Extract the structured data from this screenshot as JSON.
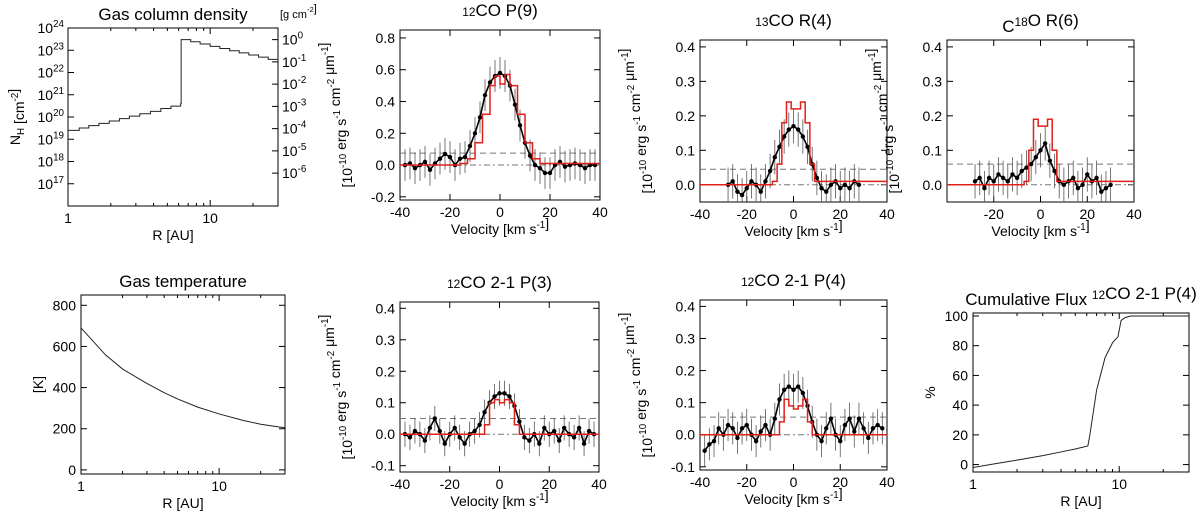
{
  "figure_description_texts": {},
  "colors": {
    "model": "#e0201b",
    "data": "#000000",
    "error": "#555555",
    "dashed": "#777777",
    "curve": "#222222"
  },
  "chart_data": [
    {
      "id": "nh",
      "type": "line",
      "title": "Gas column density",
      "xlabel": "R [AU]",
      "ylabel": "N_H [cm^-2]",
      "x_scale": "log",
      "xlim": [
        1,
        30
      ],
      "x_ticks": [
        1,
        10
      ],
      "y_scale": "log",
      "ylim": [
        1e+16,
        1e+24
      ],
      "y_ticks": [
        {
          "v": 1e+17,
          "t": "10^17"
        },
        {
          "v": 1e+18,
          "t": "10^18"
        },
        {
          "v": 1e+19,
          "t": "10^19"
        },
        {
          "v": 1e+20,
          "t": "10^20"
        },
        {
          "v": 1e+21,
          "t": "10^21"
        },
        {
          "v": 1e+22,
          "t": "10^22"
        },
        {
          "v": 1e+23,
          "t": "10^23"
        },
        {
          "v": 1e+24,
          "t": "10^24"
        }
      ],
      "y2_label": "[g cm^-2]",
      "y2_ticks": [
        {
          "v": 3e+17,
          "t": "10^-6"
        },
        {
          "v": 3e+18,
          "t": "10^-5"
        },
        {
          "v": 3e+19,
          "t": "10^-4"
        },
        {
          "v": 3e+20,
          "t": "10^-3"
        },
        {
          "v": 3e+21,
          "t": "10^-2"
        },
        {
          "v": 3e+22,
          "t": "10^-1"
        },
        {
          "v": 3e+23,
          "t": "10^0"
        }
      ],
      "series": [
        {
          "name": "N_H",
          "step": true,
          "x": [
            1,
            1.2,
            1.4,
            1.65,
            1.95,
            2.3,
            2.7,
            3.2,
            3.8,
            4.5,
            5.3,
            6.2,
            6.25,
            7.3,
            8.5,
            10,
            11.7,
            13.7,
            16,
            18.7,
            21.9,
            25.6,
            30
          ],
          "y": [
            2.5e+19,
            3.2e+19,
            4.1e+19,
            5.2e+19,
            6.6e+19,
            8.5e+19,
            1.1e+20,
            1.4e+20,
            1.8e+20,
            2.4e+20,
            3.1e+20,
            4e+20,
            3e+23,
            2.4e+23,
            1.9e+23,
            1.5e+23,
            1.2e+23,
            9.5e+22,
            7.6e+22,
            6.1e+22,
            4.9e+22,
            3.9e+22,
            3.1e+22
          ]
        }
      ]
    },
    {
      "id": "p9",
      "type": "line",
      "title": "12CO P(9)",
      "xlabel": "Velocity [km s-1]",
      "ylabel": "[10^-10 erg s^-1 cm^-2 μm^-1]",
      "xlim": [
        -40,
        40
      ],
      "x_ticks": [
        -40,
        -20,
        0,
        20,
        40
      ],
      "ylim": [
        -0.22,
        0.85
      ],
      "y_ticks": [
        -0.2,
        0.0,
        0.2,
        0.4,
        0.6,
        0.8
      ],
      "dashed_levels": [
        0.075,
        0.0
      ],
      "model": {
        "name": "model",
        "x": [
          -40,
          -22,
          -16,
          -13,
          -10,
          -7,
          -4,
          -2,
          0,
          2,
          4,
          7,
          10,
          13,
          16,
          40
        ],
        "y": [
          0,
          0,
          0.01,
          0.04,
          0.14,
          0.32,
          0.5,
          0.56,
          0.51,
          0.57,
          0.5,
          0.32,
          0.14,
          0.04,
          0.01,
          0
        ]
      },
      "data": {
        "name": "data",
        "err": 0.1,
        "x": [
          -38,
          -36,
          -34,
          -32,
          -30,
          -28,
          -26,
          -24,
          -22,
          -20,
          -18,
          -16,
          -14,
          -12,
          -10,
          -8,
          -6,
          -4,
          -2,
          0,
          2,
          4,
          6,
          8,
          10,
          12,
          14,
          16,
          18,
          20,
          22,
          24,
          26,
          28,
          30,
          32,
          34,
          36,
          38
        ],
        "y": [
          0,
          0.01,
          -0.02,
          0,
          0.02,
          -0.03,
          0.01,
          0.04,
          0.07,
          0.05,
          0,
          0.04,
          0.05,
          0.12,
          0.2,
          0.3,
          0.44,
          0.52,
          0.56,
          0.58,
          0.56,
          0.5,
          0.38,
          0.25,
          0.14,
          0.06,
          0,
          -0.02,
          -0.05,
          -0.05,
          0,
          0.02,
          -0.01,
          0,
          0.01,
          0,
          -0.02,
          0,
          0
        ]
      }
    },
    {
      "id": "r4",
      "type": "line",
      "title": "13CO R(4)",
      "xlabel": "Velocity [km s-1]",
      "ylabel": "[10^-10 erg s^-1 cm^-2 μm^-1]",
      "xlim": [
        -40,
        40
      ],
      "x_ticks": [
        -40,
        -20,
        0,
        20,
        40
      ],
      "ylim": [
        -0.05,
        0.42
      ],
      "y_ticks": [
        0.0,
        0.1,
        0.2,
        0.3,
        0.4
      ],
      "dashed_levels": [
        0.045,
        0.0
      ],
      "model": {
        "name": "model",
        "x": [
          -40,
          -9,
          -7,
          -5,
          -3,
          -1,
          1,
          3,
          5,
          7,
          9,
          40
        ],
        "y": [
          0,
          0.01,
          0.06,
          0.18,
          0.24,
          0.22,
          0.22,
          0.24,
          0.18,
          0.06,
          0.01,
          0
        ]
      },
      "data": {
        "name": "data",
        "err": 0.05,
        "x": [
          -28,
          -26,
          -24,
          -22,
          -20,
          -18,
          -16,
          -14,
          -12,
          -10,
          -8,
          -6,
          -4,
          -2,
          0,
          2,
          4,
          6,
          8,
          10,
          12,
          14,
          16,
          18,
          20,
          22,
          24,
          26,
          28
        ],
        "y": [
          0,
          0.01,
          -0.02,
          -0.03,
          -0.01,
          0.01,
          0,
          -0.02,
          0.01,
          0.04,
          0.08,
          0.11,
          0.14,
          0.16,
          0.17,
          0.16,
          0.14,
          0.11,
          0.06,
          0.02,
          -0.01,
          -0.02,
          0,
          0.01,
          -0.01,
          0,
          -0.01,
          0.01,
          0
        ]
      }
    },
    {
      "id": "r6",
      "type": "line",
      "title": "C18O R(6)",
      "xlabel": "Velocity [km s-1]",
      "ylabel": "[10^-10 erg s^-1 cm^-2 μm^-1]",
      "xlim": [
        -40,
        40
      ],
      "x_ticks": [
        -20,
        0,
        20,
        40
      ],
      "ylim": [
        -0.05,
        0.42
      ],
      "y_ticks": [
        0.0,
        0.1,
        0.2,
        0.3,
        0.4
      ],
      "dashed_levels": [
        0.06,
        0.0
      ],
      "model": {
        "name": "model",
        "x": [
          -40,
          -7,
          -5,
          -3,
          -1,
          1,
          3,
          5,
          7,
          40
        ],
        "y": [
          0,
          0.01,
          0.1,
          0.19,
          0.17,
          0.17,
          0.19,
          0.1,
          0.01,
          0
        ]
      },
      "data": {
        "name": "data",
        "err": 0.05,
        "x": [
          -28,
          -26,
          -24,
          -22,
          -20,
          -18,
          -16,
          -14,
          -12,
          -10,
          -8,
          -6,
          -4,
          -2,
          0,
          2,
          4,
          6,
          8,
          10,
          12,
          14,
          16,
          18,
          20,
          22,
          24,
          26,
          28,
          30
        ],
        "y": [
          0.01,
          0.02,
          -0.01,
          0.02,
          0.01,
          0.03,
          0.02,
          0.01,
          0.03,
          0.02,
          0.04,
          0.05,
          0.06,
          0.08,
          0.1,
          0.12,
          0.07,
          0.04,
          0.01,
          0,
          0.01,
          0.02,
          -0.01,
          0,
          0.03,
          0.01,
          0.02,
          -0.02,
          -0.01,
          0
        ]
      }
    },
    {
      "id": "temp",
      "type": "line",
      "title": "Gas temperature",
      "xlabel": "R [AU]",
      "ylabel": "[K]",
      "x_scale": "log",
      "xlim": [
        1,
        30
      ],
      "x_ticks": [
        1,
        10
      ],
      "ylim": [
        -20,
        850
      ],
      "y_ticks": [
        0,
        200,
        400,
        600,
        800
      ],
      "series": [
        {
          "name": "T",
          "x": [
            1,
            1.5,
            2,
            3,
            4,
            5,
            7,
            10,
            15,
            20,
            25,
            30
          ],
          "y": [
            690,
            560,
            490,
            420,
            375,
            345,
            305,
            272,
            240,
            222,
            212,
            205
          ]
        }
      ]
    },
    {
      "id": "p3",
      "type": "line",
      "title": "12CO 2-1 P(3)",
      "xlabel": "Velocity [km s-1]",
      "ylabel": "[10^-10 erg s^-1 cm^-2 μm^-1]",
      "xlim": [
        -40,
        40
      ],
      "x_ticks": [
        -40,
        -20,
        0,
        20,
        40
      ],
      "ylim": [
        -0.12,
        0.42
      ],
      "y_ticks": [
        -0.1,
        0.0,
        0.1,
        0.2,
        0.3,
        0.4
      ],
      "dashed_levels": [
        0.05,
        0.0
      ],
      "model": {
        "name": "model",
        "x": [
          -40,
          -8,
          -6,
          -4,
          -2,
          0,
          2,
          4,
          6,
          8,
          40
        ],
        "y": [
          0,
          0,
          0.03,
          0.1,
          0.11,
          0.1,
          0.11,
          0.1,
          0.03,
          0,
          0
        ]
      },
      "data": {
        "name": "data",
        "err": 0.04,
        "x": [
          -38,
          -36,
          -34,
          -32,
          -30,
          -28,
          -26,
          -24,
          -22,
          -20,
          -18,
          -16,
          -14,
          -12,
          -10,
          -8,
          -6,
          -4,
          -2,
          0,
          2,
          4,
          6,
          8,
          10,
          12,
          14,
          16,
          18,
          20,
          22,
          24,
          26,
          28,
          30,
          32,
          34,
          36,
          38
        ],
        "y": [
          0,
          -0.01,
          0.01,
          0,
          -0.02,
          0.02,
          0.05,
          0.01,
          -0.03,
          0,
          0.02,
          -0.01,
          -0.03,
          0,
          0.01,
          0.03,
          0.07,
          0.1,
          0.12,
          0.13,
          0.13,
          0.12,
          0.09,
          0.04,
          -0.01,
          -0.02,
          0,
          -0.03,
          0.02,
          0,
          0.01,
          -0.02,
          0.02,
          0,
          -0.01,
          0.02,
          -0.03,
          0.01,
          0
        ]
      }
    },
    {
      "id": "p4",
      "type": "line",
      "title": "12CO 2-1 P(4)",
      "xlabel": "Velocity [km s-1]",
      "ylabel": "[10^-10 erg s^-1 cm^-2 μm^-1]",
      "xlim": [
        -40,
        40
      ],
      "x_ticks": [
        -40,
        -20,
        0,
        20,
        40
      ],
      "ylim": [
        -0.11,
        0.42
      ],
      "y_ticks": [
        -0.1,
        0.0,
        0.1,
        0.2,
        0.3,
        0.4
      ],
      "dashed_levels": [
        0.055,
        0.0
      ],
      "model": {
        "name": "model",
        "x": [
          -40,
          -8,
          -6,
          -4,
          -2,
          0,
          2,
          4,
          6,
          8,
          40
        ],
        "y": [
          0,
          0,
          0.04,
          0.11,
          0.09,
          0.08,
          0.09,
          0.11,
          0.04,
          0,
          0
        ]
      },
      "data": {
        "name": "data",
        "err": 0.05,
        "x": [
          -38,
          -36,
          -34,
          -32,
          -30,
          -28,
          -26,
          -24,
          -22,
          -20,
          -18,
          -16,
          -14,
          -12,
          -10,
          -8,
          -6,
          -4,
          -2,
          0,
          2,
          4,
          6,
          8,
          10,
          12,
          14,
          16,
          18,
          20,
          22,
          24,
          26,
          28,
          30,
          32,
          34,
          36,
          38
        ],
        "y": [
          -0.05,
          -0.03,
          -0.02,
          0.02,
          0,
          0.03,
          0.02,
          -0.01,
          0.02,
          0.03,
          0,
          -0.02,
          0.01,
          0.03,
          0,
          0.05,
          0.11,
          0.14,
          0.15,
          0.14,
          0.15,
          0.13,
          0.09,
          0.04,
          0,
          -0.02,
          0.02,
          0.05,
          0,
          -0.02,
          0.03,
          0.05,
          0.01,
          0.05,
          0.02,
          -0.01,
          0.02,
          0.03,
          0.02
        ]
      }
    },
    {
      "id": "cum",
      "type": "line",
      "title": "Cumulative Flux 12CO 2-1 P(4)",
      "xlabel": "R [AU]",
      "ylabel": "%",
      "x_scale": "log",
      "xlim": [
        1,
        30
      ],
      "x_ticks": [
        1,
        10
      ],
      "ylim": [
        -5,
        102
      ],
      "y_ticks": [
        0,
        20,
        40,
        60,
        80,
        100
      ],
      "series": [
        {
          "name": "cumulative",
          "x": [
            1,
            1.5,
            2,
            3,
            4,
            5,
            6.1,
            6.3,
            7,
            8,
            9,
            9.8,
            10.3,
            11,
            12,
            14,
            17,
            20,
            30
          ],
          "y": [
            -2,
            1,
            3,
            6,
            8.5,
            10.5,
            12.5,
            20,
            50,
            72,
            82,
            86,
            97,
            99,
            100,
            100,
            100,
            100,
            100
          ]
        }
      ]
    }
  ]
}
